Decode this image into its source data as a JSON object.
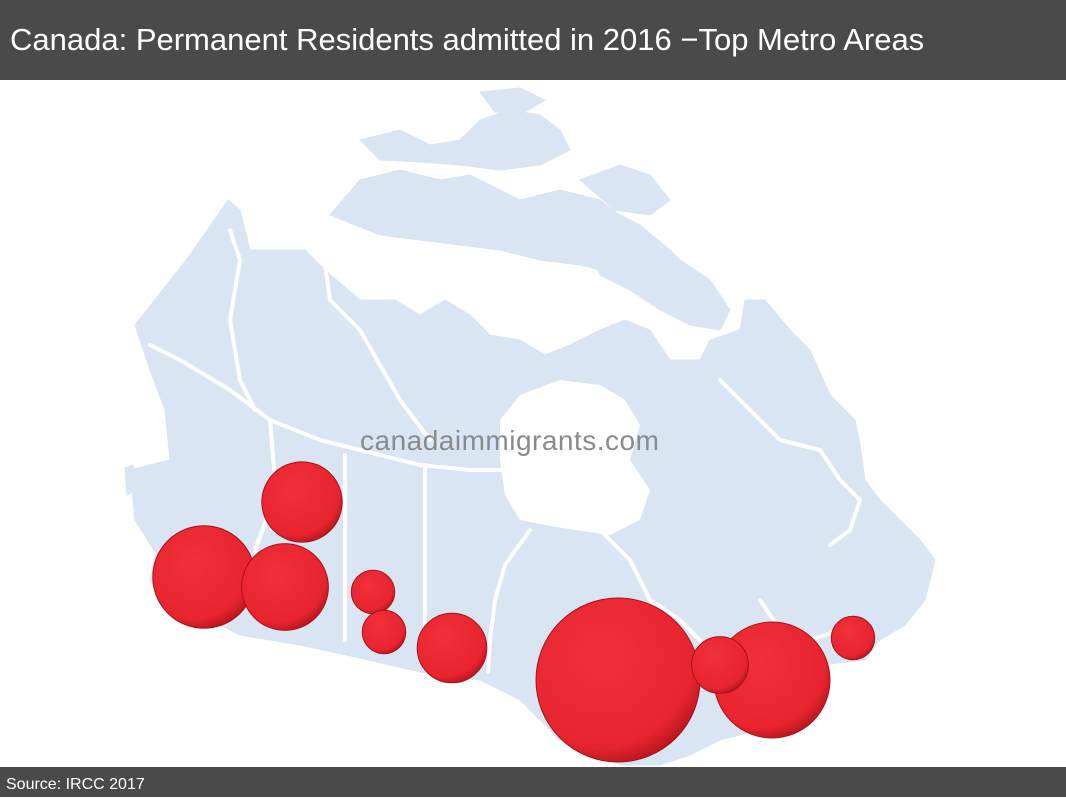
{
  "header": {
    "title": "Canada: Permanent Residents admitted in 2016 −Top Metro Areas"
  },
  "map": {
    "watermark": "canadaimmigrants.com",
    "land_color": "#d9e5f2",
    "border_color": "#ffffff",
    "bubble_color": "#e8242f",
    "bubbles": [
      {
        "id": "toronto",
        "size": 1.0
      },
      {
        "id": "montreal",
        "size": 0.5
      },
      {
        "id": "vancouver",
        "size": 0.39
      },
      {
        "id": "calgary",
        "size": 0.28
      },
      {
        "id": "edmonton",
        "size": 0.24
      },
      {
        "id": "winnipeg",
        "size": 0.18
      },
      {
        "id": "ottawa",
        "size": 0.12
      },
      {
        "id": "saskatoon",
        "size": 0.07
      },
      {
        "id": "regina",
        "size": 0.07
      },
      {
        "id": "halifax",
        "size": 0.07
      }
    ]
  },
  "footer": {
    "source": "Source: IRCC 2017"
  }
}
